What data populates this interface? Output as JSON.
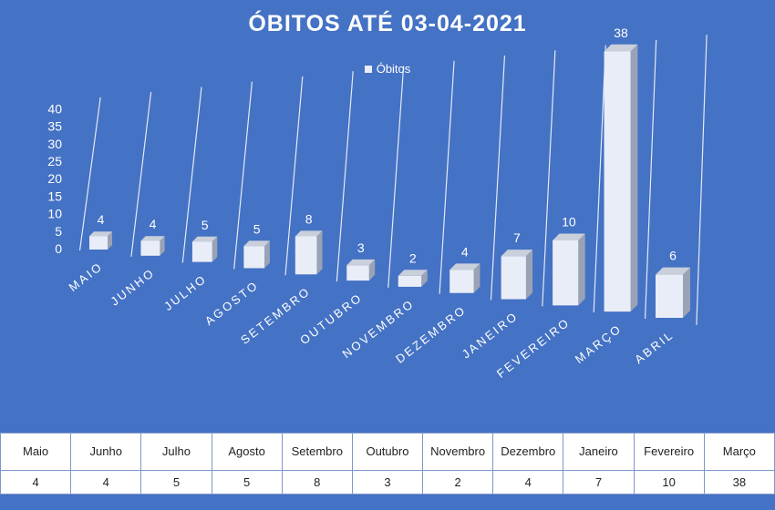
{
  "chart_data": {
    "type": "bar",
    "title": "ÓBITOS ATÉ 03-04-2021",
    "legend": "Óbitos",
    "legend_position": "top",
    "categories": [
      "MAIO",
      "JUNHO",
      "JULHO",
      "AGOSTO",
      "SETEMBRO",
      "OUTUBRO",
      "NOVEMBRO",
      "DEZEMBRO",
      "JANEIRO",
      "FEVEREIRO",
      "MARÇO",
      "ABRIL"
    ],
    "series": [
      {
        "name": "Óbitos",
        "values": [
          4,
          4,
          5,
          5,
          8,
          3,
          2,
          4,
          7,
          10,
          38,
          6
        ]
      }
    ],
    "yticks": [
      "0",
      "5",
      "10",
      "15",
      "20",
      "25",
      "30",
      "35",
      "40"
    ],
    "ylim": [
      0,
      40
    ],
    "grid": true,
    "colors": {
      "background": "#4472c4",
      "bar_front": "#e9edf7",
      "bar_side": "#9aa3b5",
      "bar_top": "#c9cfdb",
      "grid": "#ffffff"
    }
  },
  "table": {
    "headers": [
      "Maio",
      "Junho",
      "Julho",
      "Agosto",
      "Setembro",
      "Outubro",
      "Novembro",
      "Dezembro",
      "Janeiro",
      "Fevereiro",
      "Março"
    ],
    "values": [
      "4",
      "4",
      "5",
      "5",
      "8",
      "3",
      "2",
      "4",
      "7",
      "10",
      "38"
    ]
  }
}
